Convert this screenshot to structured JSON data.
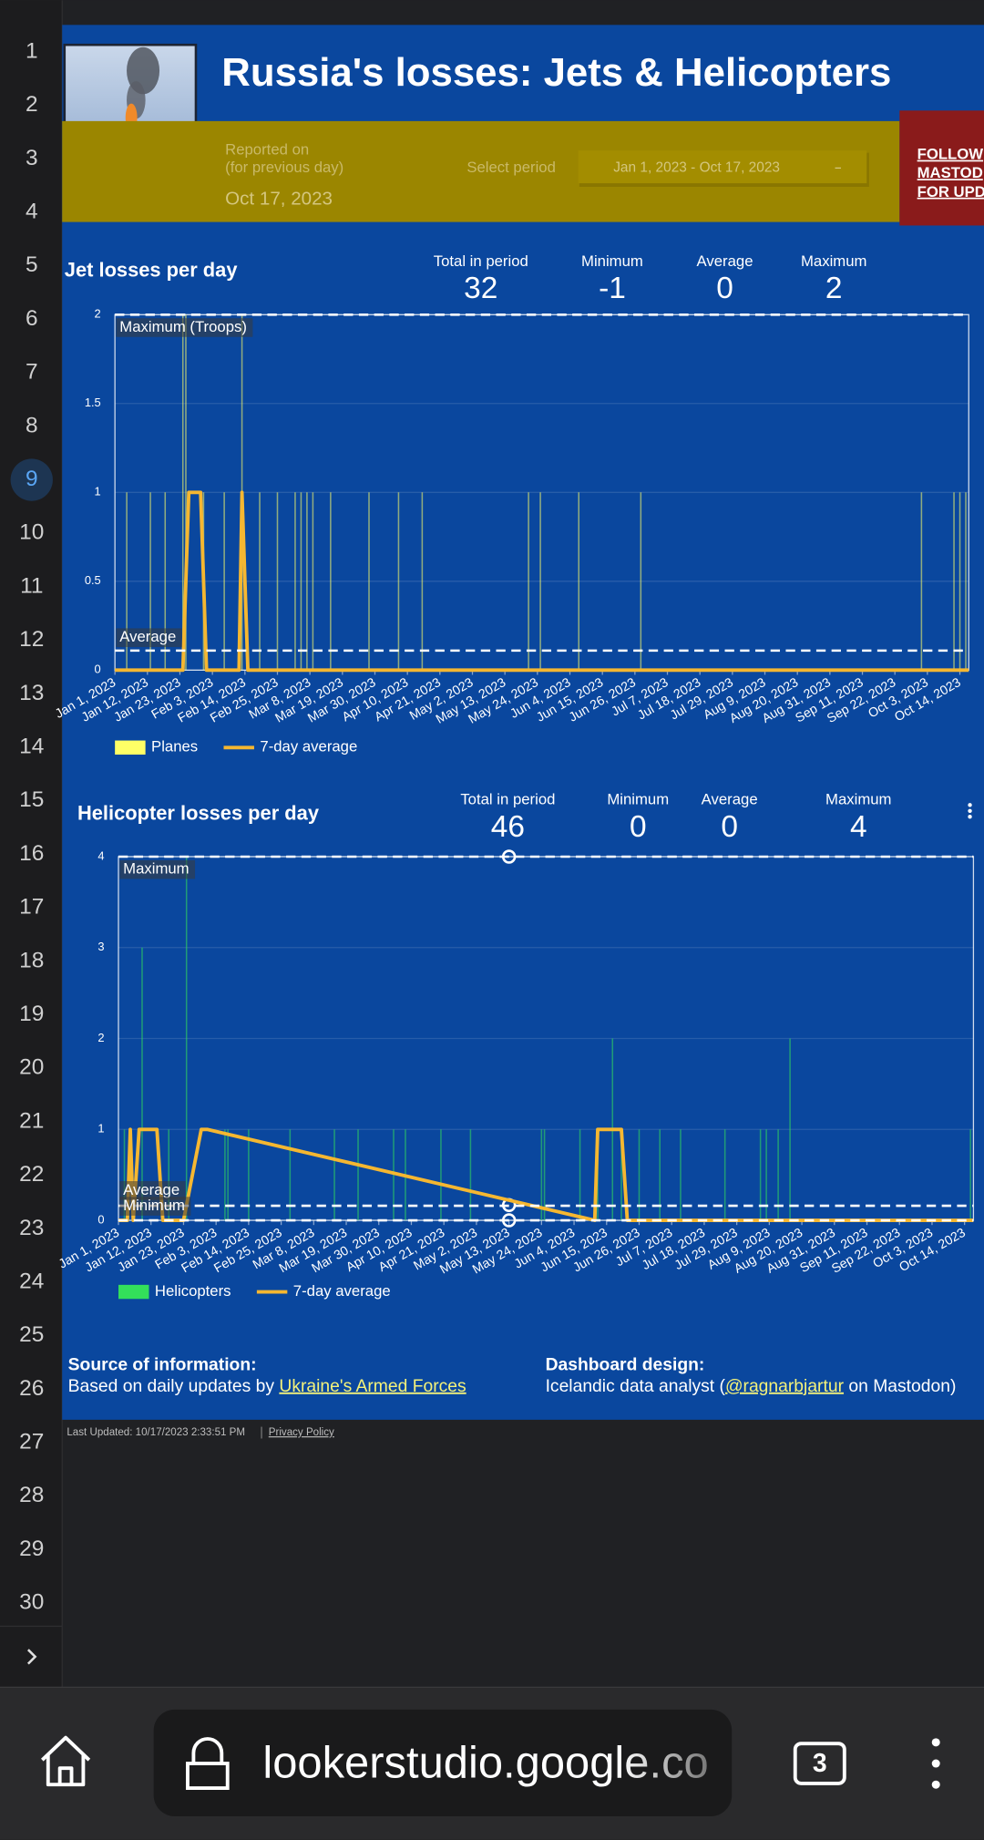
{
  "gutter": {
    "line_numbers": [
      1,
      2,
      3,
      4,
      5,
      6,
      7,
      8,
      9,
      10,
      11,
      12,
      13,
      14,
      15,
      16,
      17,
      18,
      19,
      20,
      21,
      22,
      23,
      24,
      25,
      26,
      27,
      28,
      29,
      30
    ],
    "active": 9
  },
  "header": {
    "title": "Russia's losses:  Jets & Helicopters",
    "reported_label": "Reported on",
    "reported_sub": "(for previous day)",
    "reported_date": "Oct 17, 2023",
    "period_label": "Select period",
    "period_value": "Jan 1, 2023 - Oct 17, 2023",
    "follow": [
      "FOLLOW",
      "MASTOD",
      "FOR UPD"
    ]
  },
  "chart_data": [
    {
      "type": "bar",
      "title": "Jet losses per day",
      "kpis": [
        {
          "label": "Total in period",
          "value": 32
        },
        {
          "label": "Minimum",
          "value": -1
        },
        {
          "label": "Average",
          "value": 0
        },
        {
          "label": "Maximum",
          "value": 2
        }
      ],
      "xlim": [
        "Jan 1, 2023",
        "Oct 17, 2023"
      ],
      "xticks": [
        "Jan 1, 2023",
        "Jan 12, 2023",
        "Jan 23, 2023",
        "Feb 3, 2023",
        "Feb 14, 2023",
        "Feb 25, 2023",
        "Mar 8, 2023",
        "Mar 19, 2023",
        "Mar 30, 2023",
        "Apr 10, 2023",
        "Apr 21, 2023",
        "May 2, 2023",
        "May 13, 2023",
        "May 24, 2023",
        "Jun 4, 2023",
        "Jun 15, 2023",
        "Jun 26, 2023",
        "Jul 7, 2023",
        "Jul 18, 2023",
        "Jul 29, 2023",
        "Aug 9, 2023",
        "Aug 20, 2023",
        "Aug 31, 2023",
        "Sep 11, 2023",
        "Sep 22, 2023",
        "Oct 3, 2023",
        "Oct 14, 2023"
      ],
      "ylim": [
        0,
        2
      ],
      "yticks": [
        0,
        0.5,
        1,
        1.5,
        2
      ],
      "grid": true,
      "reference_lines": [
        {
          "label": "Maximum (Troops)",
          "value": 2
        },
        {
          "label": "Average",
          "value": 0.11
        }
      ],
      "series": [
        {
          "name": "Planes",
          "type": "bar",
          "color": "#ffff66",
          "x": [
            "Jan 5, 2023",
            "Jan 13, 2023",
            "Jan 18, 2023",
            "Jan 24, 2023",
            "Jan 25, 2023",
            "Jan 31, 2023",
            "Feb 7, 2023",
            "Feb 13, 2023",
            "Feb 19, 2023",
            "Feb 25, 2023",
            "Mar 3, 2023",
            "Mar 5, 2023",
            "Mar 7, 2023",
            "Mar 9, 2023",
            "Mar 15, 2023",
            "Mar 28, 2023",
            "Apr 7, 2023",
            "Apr 15, 2023",
            "May 21, 2023",
            "May 25, 2023",
            "Jun 7, 2023",
            "Jun 28, 2023",
            "Oct 1, 2023",
            "Oct 12, 2023",
            "Oct 14, 2023",
            "Oct 16, 2023"
          ],
          "values": [
            1,
            1,
            1,
            2,
            2,
            1,
            1,
            2,
            1,
            1,
            1,
            1,
            1,
            1,
            1,
            1,
            1,
            1,
            1,
            1,
            1,
            1,
            1,
            1,
            1,
            1
          ]
        },
        {
          "name": "7-day average",
          "type": "line",
          "color": "#f5b731",
          "x": [
            "Jan 1, 2023",
            "Jan 24, 2023",
            "Jan 26, 2023",
            "Jan 30, 2023",
            "Feb 1, 2023",
            "Feb 12, 2023",
            "Feb 13, 2023",
            "Feb 15, 2023",
            "Oct 17, 2023"
          ],
          "values": [
            0,
            0,
            1,
            1,
            0,
            0,
            1,
            0,
            0
          ]
        }
      ]
    },
    {
      "type": "bar",
      "title": "Helicopter losses per day",
      "kpis": [
        {
          "label": "Total in period",
          "value": 46
        },
        {
          "label": "Minimum",
          "value": 0
        },
        {
          "label": "Average",
          "value": 0
        },
        {
          "label": "Maximum",
          "value": 4
        }
      ],
      "xlim": [
        "Jan 1, 2023",
        "Oct 17, 2023"
      ],
      "xticks": [
        "Jan 1, 2023",
        "Jan 12, 2023",
        "Jan 23, 2023",
        "Feb 3, 2023",
        "Feb 14, 2023",
        "Feb 25, 2023",
        "Mar 8, 2023",
        "Mar 19, 2023",
        "Mar 30, 2023",
        "Apr 10, 2023",
        "Apr 21, 2023",
        "May 2, 2023",
        "May 13, 2023",
        "May 24, 2023",
        "Jun 4, 2023",
        "Jun 15, 2023",
        "Jun 26, 2023",
        "Jul 7, 2023",
        "Jul 18, 2023",
        "Jul 29, 2023",
        "Aug 9, 2023",
        "Aug 20, 2023",
        "Aug 31, 2023",
        "Sep 11, 2023",
        "Sep 22, 2023",
        "Oct 3, 2023",
        "Oct 14, 2023"
      ],
      "ylim": [
        0,
        4
      ],
      "yticks": [
        0,
        1,
        2,
        3,
        4
      ],
      "grid": true,
      "reference_lines": [
        {
          "label": "Maximum",
          "value": 4
        },
        {
          "label": "Average",
          "value": 0.16
        },
        {
          "label": "Minimum",
          "value": 0
        }
      ],
      "series": [
        {
          "name": "Helicopters",
          "type": "bar",
          "color": "#33e05a",
          "x": [
            "Jan 3, 2023",
            "Jan 9, 2023",
            "Jan 18, 2023",
            "Jan 24, 2023",
            "Feb 6, 2023",
            "Feb 7, 2023",
            "Feb 14, 2023",
            "Feb 28, 2023",
            "Mar 15, 2023",
            "Mar 23, 2023",
            "Apr 4, 2023",
            "Apr 8, 2023",
            "Apr 20, 2023",
            "Apr 30, 2023",
            "May 24, 2023",
            "May 25, 2023",
            "Jun 6, 2023",
            "Jun 12, 2023",
            "Jun 17, 2023",
            "Jun 20, 2023",
            "Jun 26, 2023",
            "Jul 3, 2023",
            "Jul 10, 2023",
            "Jul 25, 2023",
            "Aug 6, 2023",
            "Aug 8, 2023",
            "Aug 12, 2023",
            "Aug 16, 2023",
            "Oct 16, 2023"
          ],
          "values": [
            1,
            3,
            1,
            4,
            1,
            1,
            1,
            1,
            1,
            1,
            1,
            1,
            1,
            1,
            1,
            1,
            1,
            1,
            2,
            1,
            1,
            1,
            1,
            1,
            1,
            1,
            1,
            2,
            1
          ]
        },
        {
          "name": "7-day average",
          "type": "line",
          "color": "#f5b731",
          "x": [
            "Jan 1, 2023",
            "Jan 4, 2023",
            "Jan 5, 2023",
            "Jan 6, 2023",
            "Jan 8, 2023",
            "Jan 14, 2023",
            "Jan 16, 2023",
            "Jan 23, 2023",
            "Jan 29, 2023",
            "Jan 31, 2023",
            "Jun 11, 2023",
            "Jun 12, 2023",
            "Jun 20, 2023",
            "Jun 22, 2023",
            "Oct 17, 2023"
          ],
          "values": [
            0,
            0,
            1,
            0,
            1,
            1,
            0,
            0,
            1,
            1,
            0,
            1,
            1,
            0,
            0
          ]
        }
      ]
    }
  ],
  "footer": {
    "source_title": "Source of information:",
    "source_text": "Based on daily updates by ",
    "source_link": "Ukraine's Armed Forces",
    "design_title": "Dashboard design:",
    "design_text": "Icelandic data analyst (",
    "design_link": "@ragnarbjartur",
    "design_end": " on Mastodon)",
    "updated": "Last Updated: 10/17/2023 2:33:51 PM",
    "privacy": "Privacy Policy"
  },
  "browser": {
    "url": "lookerstudio.google.co",
    "tabs": 3
  }
}
